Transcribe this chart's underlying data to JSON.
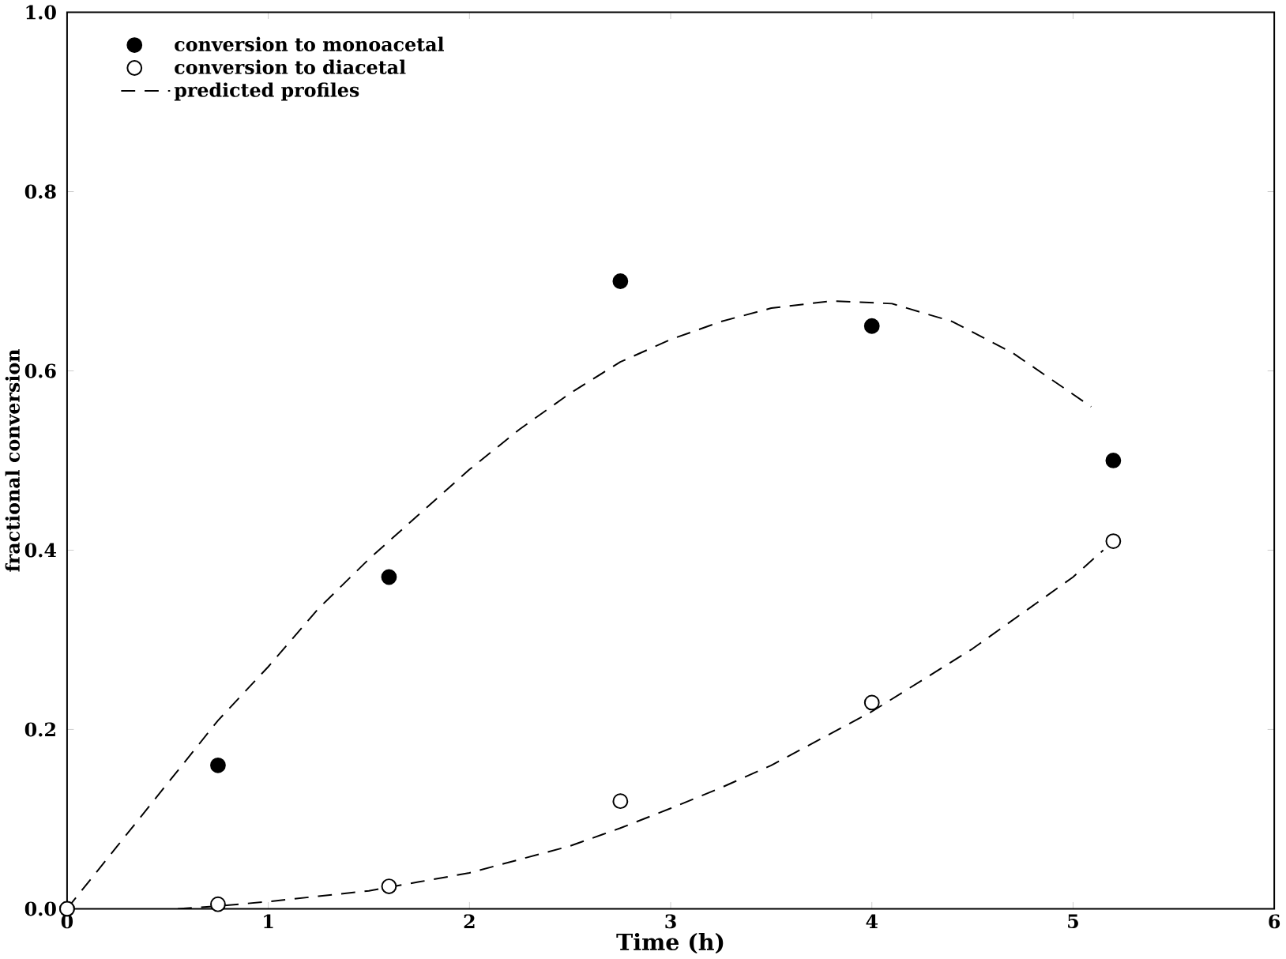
{
  "chart_data": {
    "type": "scatter",
    "xlabel": "Time (h)",
    "ylabel": "fractional conversion",
    "xlim": [
      0,
      6
    ],
    "ylim": [
      0,
      1
    ],
    "xticks": [
      0,
      1,
      2,
      3,
      4,
      5,
      6
    ],
    "yticks": [
      {
        "value": 0,
        "label": "0.0"
      },
      {
        "value": 0.2,
        "label": "0.2"
      },
      {
        "value": 0.4,
        "label": "0.4"
      },
      {
        "value": 0.6,
        "label": "0.6"
      },
      {
        "value": 0.8,
        "label": "0.8"
      },
      {
        "value": 1,
        "label": "1.0"
      }
    ],
    "grid": false,
    "legend": "top left",
    "series": [
      {
        "name": "conversion to monoacetal",
        "marker": "circle",
        "color": "#000000",
        "x": [
          0,
          0.75,
          1.6,
          2.75,
          4.0,
          5.2
        ],
        "values": [
          0,
          0.16,
          0.37,
          0.7,
          0.65,
          0.5
        ]
      },
      {
        "name": "conversion to diacetal",
        "marker": "circle",
        "color": "#ffffff",
        "x": [
          0,
          0.75,
          1.6,
          2.75,
          4.0,
          5.2
        ],
        "values": [
          0,
          0.005,
          0.025,
          0.12,
          0.23,
          0.41
        ]
      },
      {
        "name": "predicted profiles",
        "type": "line",
        "line_style": "dashed",
        "marker": "none",
        "color": "#000000",
        "x": [
          0,
          0.25,
          0.5,
          0.75,
          1,
          1.25,
          1.5,
          1.75,
          2,
          2.25,
          2.5,
          2.75,
          3,
          3.25,
          3.5,
          3.8,
          4.1,
          4.4,
          4.7,
          5.09
        ],
        "values": [
          0,
          0.07,
          0.14,
          0.21,
          0.27,
          0.335,
          0.39,
          0.44,
          0.49,
          0.535,
          0.575,
          0.61,
          0.635,
          0.655,
          0.67,
          0.678,
          0.675,
          0.655,
          0.62,
          0.56
        ]
      },
      {
        "type": "line",
        "line_style": "dashed",
        "marker": "none",
        "color": "#000000",
        "x": [
          0.55,
          0.75,
          1,
          1.25,
          1.5,
          1.75,
          2,
          2.25,
          2.5,
          2.75,
          3,
          3.25,
          3.5,
          3.75,
          4,
          4.25,
          4.5,
          4.75,
          5,
          5.15
        ],
        "values": [
          0,
          0.003,
          0.008,
          0.014,
          0.02,
          0.03,
          0.04,
          0.055,
          0.07,
          0.09,
          0.112,
          0.135,
          0.16,
          0.19,
          0.22,
          0.255,
          0.29,
          0.33,
          0.37,
          0.4
        ]
      }
    ]
  }
}
